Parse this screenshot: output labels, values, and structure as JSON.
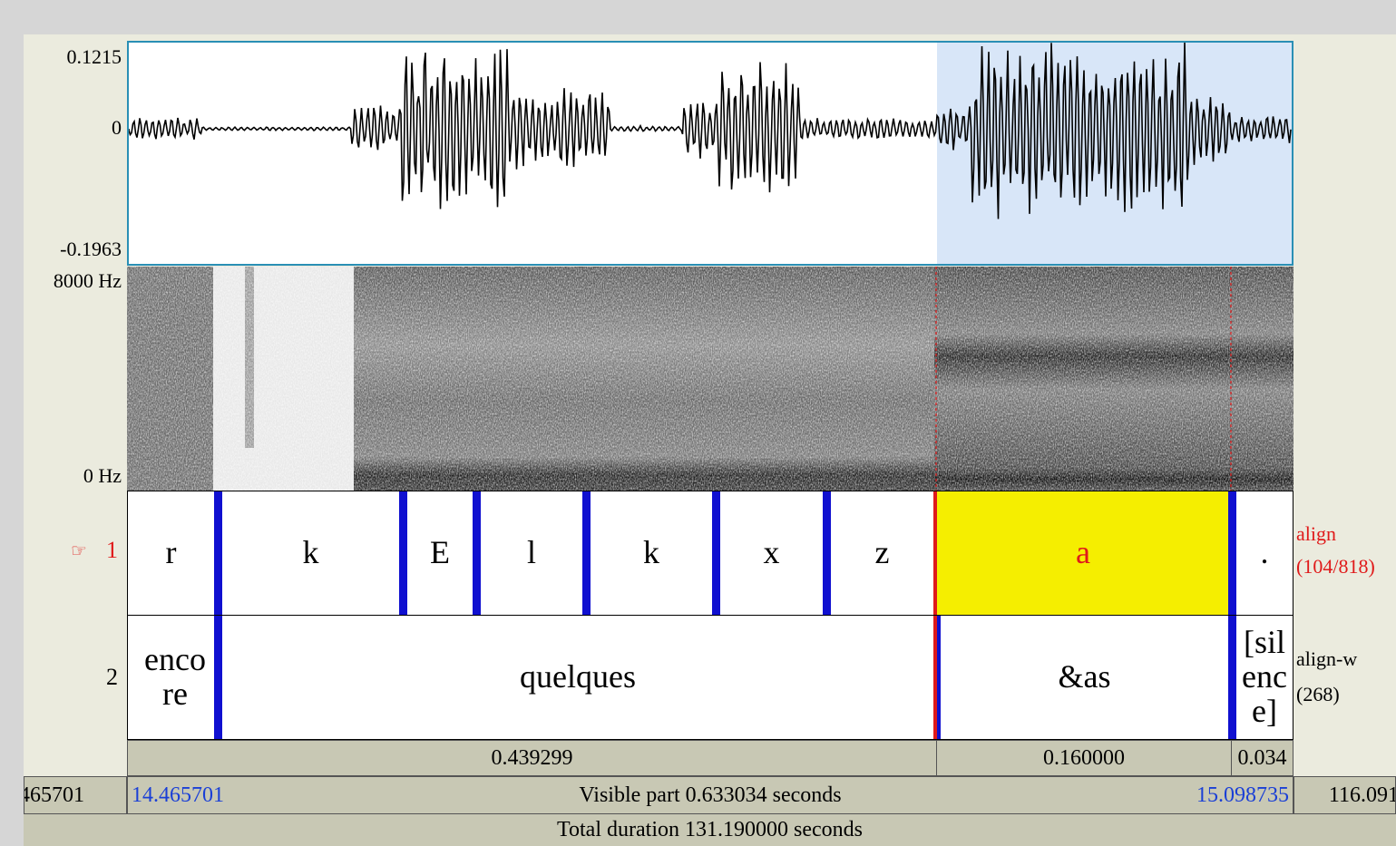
{
  "waveform": {
    "max_label": "0.1215",
    "zero_label": "0",
    "min_label": "-0.1963"
  },
  "spectrogram": {
    "top_label": "8000 Hz",
    "bottom_label": "0 Hz"
  },
  "tiers": [
    {
      "number_label": "1",
      "pointer_icon": "pointing-hand-icon",
      "name_line1": "align",
      "name_line2": "(104/818)",
      "segments": [
        "r",
        "k",
        "E",
        "l",
        "k",
        "x",
        "z",
        "a",
        "."
      ],
      "selected_segment": "a"
    },
    {
      "number_label": "2",
      "name_line1": "align-w",
      "name_line2": "(268)",
      "segments": [
        "enco re",
        "quelques",
        "&as",
        "[sil enc e]"
      ]
    }
  ],
  "durations": {
    "before": "0.439299",
    "selection": "0.160000",
    "after": "0.034"
  },
  "visible": {
    "left_outer": "465701",
    "start": "14.465701",
    "label": "Visible part 0.633034 seconds",
    "end": "15.098735",
    "right_outer": "116.091"
  },
  "total": {
    "label": "Total duration 131.190000 seconds"
  },
  "colors": {
    "selection_fill": "#d8e6f8",
    "interval_highlight": "#f5ee00",
    "boundary": "#1010d0",
    "cursor": "#e01a1a",
    "time_blue": "#1a3fd6"
  }
}
